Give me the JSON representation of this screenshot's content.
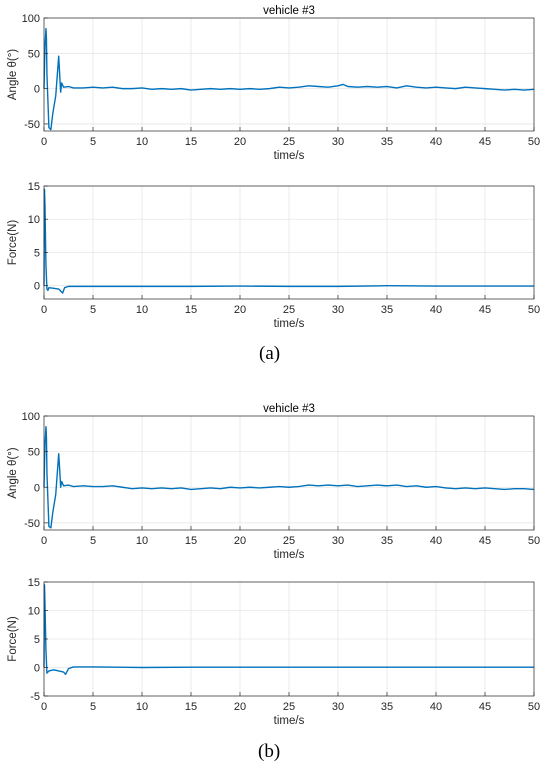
{
  "panel_labels": [
    "(a)",
    "(b)"
  ],
  "chart_data": [
    {
      "type": "line",
      "title": "vehicle #3",
      "xlabel": "time/s",
      "ylabel": "Angle  θ(°)",
      "xlim": [
        0,
        50
      ],
      "ylim": [
        -60,
        100
      ],
      "xticks": [
        0,
        5,
        10,
        15,
        20,
        25,
        30,
        35,
        40,
        45,
        50
      ],
      "yticks": [
        -50,
        0,
        50,
        100
      ],
      "grid": true,
      "color": "#0072BD",
      "series": [
        {
          "x": [
            0,
            0.1,
            0.2,
            0.25,
            0.3,
            0.5,
            0.7,
            0.9,
            1.2,
            1.5,
            1.6,
            1.7,
            1.8,
            2.0,
            2.5,
            3,
            4,
            5,
            6,
            7,
            8,
            9,
            10,
            11,
            12,
            13,
            14,
            15,
            16,
            17,
            18,
            19,
            20,
            21,
            22,
            23,
            24,
            25,
            26,
            27,
            28,
            29,
            30,
            30.5,
            31,
            32,
            33,
            34,
            35,
            36,
            37,
            38,
            39,
            40,
            41,
            42,
            43,
            44,
            45,
            46,
            47,
            48,
            49,
            50
          ],
          "y": [
            0,
            60,
            85,
            70,
            20,
            -55,
            -58,
            -35,
            -10,
            46,
            20,
            -5,
            8,
            2,
            3,
            1,
            1,
            2,
            1,
            2,
            0,
            0,
            1,
            -1,
            0,
            -1,
            0,
            -2,
            -1,
            0,
            -1,
            0,
            -1,
            0,
            -1,
            0,
            2,
            1,
            2,
            4,
            3,
            2,
            4,
            6,
            3,
            2,
            3,
            2,
            3,
            1,
            4,
            2,
            1,
            2,
            1,
            0,
            2,
            1,
            0,
            -1,
            -2,
            -1,
            -2,
            -1
          ]
        }
      ]
    },
    {
      "type": "line",
      "title": "",
      "xlabel": "time/s",
      "ylabel": "Force(N)",
      "xlim": [
        0,
        50
      ],
      "ylim": [
        -2,
        15
      ],
      "xticks": [
        0,
        5,
        10,
        15,
        20,
        25,
        30,
        35,
        40,
        45,
        50
      ],
      "yticks": [
        0,
        5,
        10,
        15
      ],
      "grid": true,
      "color": "#0072BD",
      "series": [
        {
          "x": [
            0,
            0.05,
            0.1,
            0.2,
            0.3,
            0.4,
            0.5,
            1,
            1.5,
            1.9,
            2.1,
            2.5,
            3,
            5,
            10,
            15,
            20,
            25,
            30,
            35,
            40,
            45,
            50
          ],
          "y": [
            0,
            14.5,
            12,
            3,
            -0.5,
            -0.7,
            -0.3,
            -0.4,
            -0.5,
            -1.1,
            -0.3,
            -0.1,
            -0.1,
            -0.1,
            -0.1,
            -0.1,
            -0.05,
            -0.1,
            -0.1,
            0,
            -0.05,
            -0.05,
            -0.05
          ]
        }
      ]
    },
    {
      "type": "line",
      "title": "vehicle #3",
      "xlabel": "time/s",
      "ylabel": "Angle  θ(°)",
      "xlim": [
        0,
        50
      ],
      "ylim": [
        -60,
        100
      ],
      "xticks": [
        0,
        5,
        10,
        15,
        20,
        25,
        30,
        35,
        40,
        45,
        50
      ],
      "yticks": [
        -50,
        0,
        50,
        100
      ],
      "grid": true,
      "color": "#0072BD",
      "series": [
        {
          "x": [
            0,
            0.1,
            0.2,
            0.25,
            0.3,
            0.5,
            0.7,
            0.9,
            1.2,
            1.5,
            1.6,
            1.7,
            1.8,
            2.0,
            2.5,
            3,
            4,
            5,
            6,
            7,
            8,
            9,
            10,
            11,
            12,
            13,
            14,
            15,
            16,
            17,
            18,
            19,
            20,
            21,
            22,
            23,
            24,
            25,
            26,
            27,
            28,
            29,
            30,
            31,
            32,
            33,
            34,
            35,
            36,
            37,
            38,
            39,
            40,
            41,
            42,
            43,
            44,
            45,
            46,
            47,
            48,
            49,
            50
          ],
          "y": [
            0,
            60,
            85,
            70,
            20,
            -55,
            -57,
            -35,
            -10,
            47,
            25,
            0,
            8,
            2,
            3,
            1,
            2,
            1,
            1,
            2,
            0,
            -2,
            -1,
            -2,
            -1,
            -2,
            -1,
            -3,
            -2,
            -1,
            -2,
            0,
            -1,
            0,
            -1,
            0,
            1,
            0,
            1,
            3,
            2,
            3,
            2,
            3,
            1,
            2,
            3,
            2,
            3,
            1,
            2,
            0,
            1,
            -1,
            -2,
            -1,
            -2,
            -1,
            -2,
            -3,
            -2,
            -2,
            -3
          ]
        }
      ]
    },
    {
      "type": "line",
      "title": "",
      "xlabel": "time/s",
      "ylabel": "Force(N)",
      "xlim": [
        0,
        50
      ],
      "ylim": [
        -5,
        15
      ],
      "xticks": [
        0,
        5,
        10,
        15,
        20,
        25,
        30,
        35,
        40,
        45,
        50
      ],
      "yticks": [
        -5,
        0,
        5,
        10,
        15
      ],
      "grid": true,
      "color": "#0072BD",
      "series": [
        {
          "x": [
            0,
            0.05,
            0.1,
            0.2,
            0.3,
            0.5,
            1,
            1.5,
            2,
            2.2,
            2.5,
            3,
            5,
            10,
            15,
            20,
            25,
            30,
            35,
            40,
            45,
            50
          ],
          "y": [
            0,
            14.5,
            11,
            3,
            -1,
            -0.6,
            -0.4,
            -0.6,
            -0.8,
            -1.2,
            -0.2,
            0.1,
            0.1,
            0,
            0.05,
            0.05,
            0.05,
            0.05,
            0.05,
            0.05,
            0.05,
            0.05
          ]
        }
      ]
    }
  ]
}
